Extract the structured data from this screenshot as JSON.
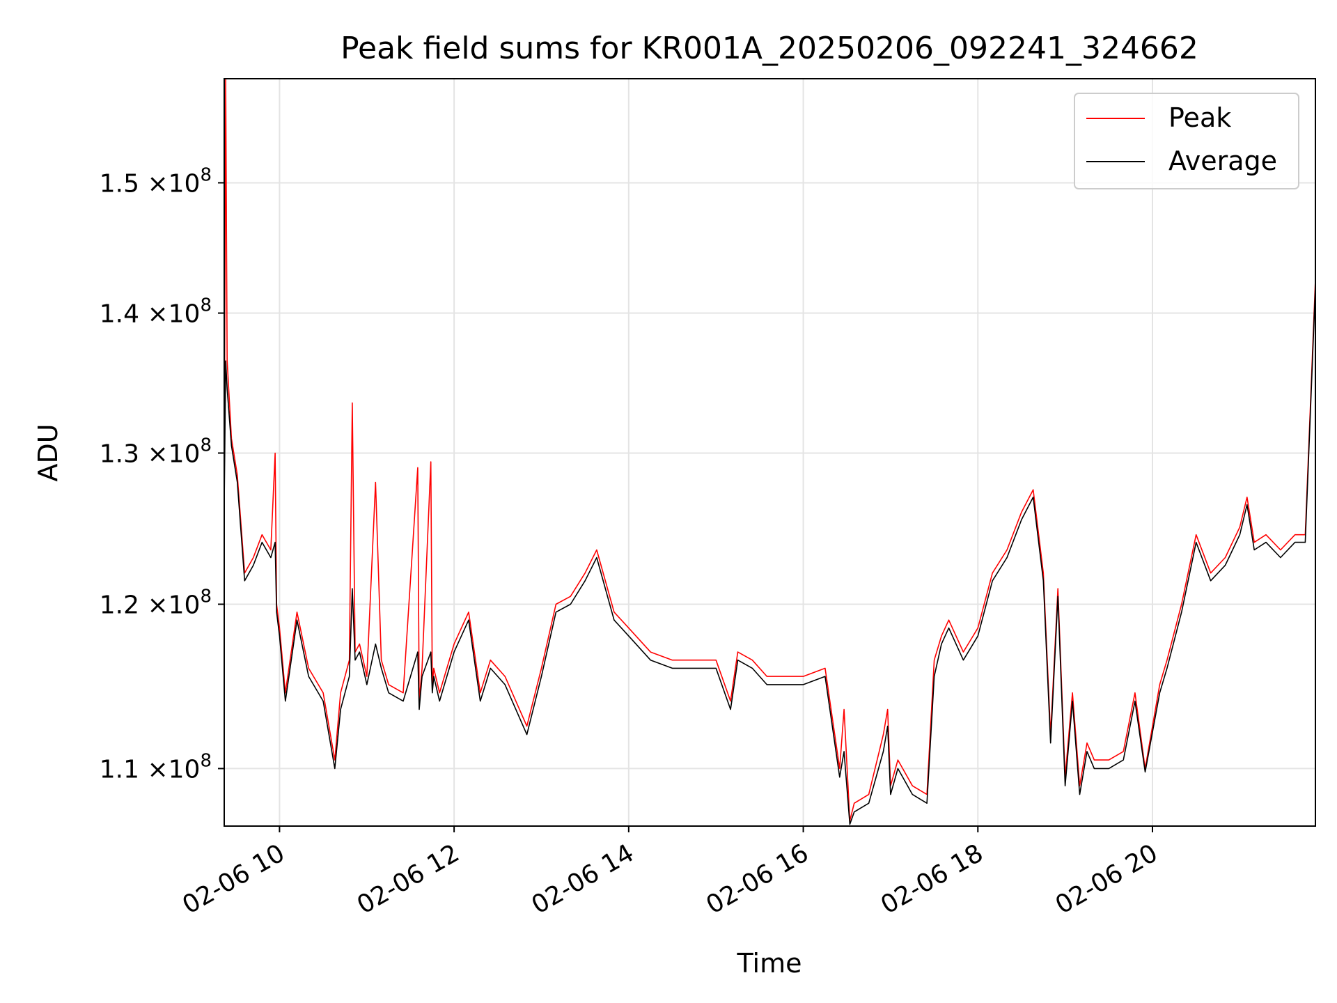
{
  "chart_data": {
    "type": "line",
    "title": "Peak field sums for KR001A_20250206_092241_324662",
    "xlabel": "Time",
    "ylabel": "ADU",
    "x_axis": "time",
    "xlim": [
      "2025-02-06 09:22",
      "2025-02-06 21:52"
    ],
    "xticks": [
      "2025-02-06 10:00",
      "2025-02-06 12:00",
      "2025-02-06 14:00",
      "2025-02-06 16:00",
      "2025-02-06 18:00",
      "2025-02-06 20:00"
    ],
    "xtick_labels": [
      "02-06 10",
      "02-06 12",
      "02-06 14",
      "02-06 16",
      "02-06 18",
      "02-06 20"
    ],
    "y_scale": "log",
    "ylim": [
      106700000,
      158500000
    ],
    "yticks": [
      110000000,
      120000000,
      130000000,
      140000000,
      150000000
    ],
    "ytick_labels": [
      {
        "mantissa": "1.1",
        "exponent": "8"
      },
      {
        "mantissa": "1.2",
        "exponent": "8"
      },
      {
        "mantissa": "1.3",
        "exponent": "8"
      },
      {
        "mantissa": "1.4",
        "exponent": "8"
      },
      {
        "mantissa": "1.5",
        "exponent": "8"
      }
    ],
    "tick_times_label": "×10",
    "grid": true,
    "legend": {
      "position": "top-right"
    },
    "series": [
      {
        "name": "Peak",
        "color": "#ff0000",
        "x": [
          "2025-02-06 09:22",
          "2025-02-06 09:23",
          "2025-02-06 09:24",
          "2025-02-06 09:27",
          "2025-02-06 09:31",
          "2025-02-06 09:36",
          "2025-02-06 09:42",
          "2025-02-06 09:48",
          "2025-02-06 09:54",
          "2025-02-06 09:57",
          "2025-02-06 09:58",
          "2025-02-06 10:00",
          "2025-02-06 10:04",
          "2025-02-06 10:12",
          "2025-02-06 10:20",
          "2025-02-06 10:30",
          "2025-02-06 10:38",
          "2025-02-06 10:42",
          "2025-02-06 10:48",
          "2025-02-06 10:50",
          "2025-02-06 10:52",
          "2025-02-06 10:55",
          "2025-02-06 11:00",
          "2025-02-06 11:06",
          "2025-02-06 11:10",
          "2025-02-06 11:15",
          "2025-02-06 11:25",
          "2025-02-06 11:35",
          "2025-02-06 11:36",
          "2025-02-06 11:38",
          "2025-02-06 11:44",
          "2025-02-06 11:45",
          "2025-02-06 11:46",
          "2025-02-06 11:50",
          "2025-02-06 12:00",
          "2025-02-06 12:10",
          "2025-02-06 12:18",
          "2025-02-06 12:25",
          "2025-02-06 12:35",
          "2025-02-06 12:50",
          "2025-02-06 13:00",
          "2025-02-06 13:10",
          "2025-02-06 13:20",
          "2025-02-06 13:30",
          "2025-02-06 13:38",
          "2025-02-06 13:50",
          "2025-02-06 14:00",
          "2025-02-06 14:15",
          "2025-02-06 14:30",
          "2025-02-06 14:45",
          "2025-02-06 15:00",
          "2025-02-06 15:10",
          "2025-02-06 15:15",
          "2025-02-06 15:25",
          "2025-02-06 15:35",
          "2025-02-06 15:45",
          "2025-02-06 16:00",
          "2025-02-06 16:15",
          "2025-02-06 16:25",
          "2025-02-06 16:28",
          "2025-02-06 16:32",
          "2025-02-06 16:35",
          "2025-02-06 16:45",
          "2025-02-06 16:55",
          "2025-02-06 16:58",
          "2025-02-06 17:00",
          "2025-02-06 17:05",
          "2025-02-06 17:15",
          "2025-02-06 17:25",
          "2025-02-06 17:30",
          "2025-02-06 17:35",
          "2025-02-06 17:40",
          "2025-02-06 17:50",
          "2025-02-06 18:00",
          "2025-02-06 18:10",
          "2025-02-06 18:20",
          "2025-02-06 18:30",
          "2025-02-06 18:38",
          "2025-02-06 18:45",
          "2025-02-06 18:50",
          "2025-02-06 18:55",
          "2025-02-06 19:00",
          "2025-02-06 19:05",
          "2025-02-06 19:10",
          "2025-02-06 19:15",
          "2025-02-06 19:20",
          "2025-02-06 19:30",
          "2025-02-06 19:40",
          "2025-02-06 19:48",
          "2025-02-06 19:55",
          "2025-02-06 20:05",
          "2025-02-06 20:10",
          "2025-02-06 20:20",
          "2025-02-06 20:30",
          "2025-02-06 20:40",
          "2025-02-06 20:50",
          "2025-02-06 21:00",
          "2025-02-06 21:05",
          "2025-02-06 21:10",
          "2025-02-06 21:18",
          "2025-02-06 21:28",
          "2025-02-06 21:38",
          "2025-02-06 21:45",
          "2025-02-06 21:52"
        ],
        "values": [
          127000000,
          158500000,
          136500000,
          131000000,
          128500000,
          122000000,
          123000000,
          124500000,
          123500000,
          130000000,
          120000000,
          118500000,
          114500000,
          119500000,
          116000000,
          114500000,
          110500000,
          114500000,
          116500000,
          133500000,
          117000000,
          117500000,
          115500000,
          128000000,
          116500000,
          115000000,
          114500000,
          129000000,
          114000000,
          116000000,
          129400000,
          115000000,
          116000000,
          114500000,
          117500000,
          119500000,
          114500000,
          116500000,
          115500000,
          112500000,
          116000000,
          120000000,
          120500000,
          122000000,
          123500000,
          119500000,
          118500000,
          117000000,
          116500000,
          116500000,
          116500000,
          114000000,
          117000000,
          116500000,
          115500000,
          115500000,
          115500000,
          116000000,
          110000000,
          113500000,
          107000000,
          108000000,
          108500000,
          112000000,
          113500000,
          109000000,
          110500000,
          109000000,
          108500000,
          116500000,
          118000000,
          119000000,
          117000000,
          118500000,
          122000000,
          123500000,
          126000000,
          127500000,
          122000000,
          112000000,
          121000000,
          109500000,
          114500000,
          109000000,
          111500000,
          110500000,
          110500000,
          111000000,
          114500000,
          110000000,
          115000000,
          116500000,
          120000000,
          124500000,
          122000000,
          123000000,
          125000000,
          127000000,
          124000000,
          124500000,
          123500000,
          124500000,
          124500000,
          142500000
        ]
      },
      {
        "name": "Average",
        "color": "#000000",
        "x": [
          "2025-02-06 09:22",
          "2025-02-06 09:23",
          "2025-02-06 09:24",
          "2025-02-06 09:27",
          "2025-02-06 09:31",
          "2025-02-06 09:36",
          "2025-02-06 09:42",
          "2025-02-06 09:48",
          "2025-02-06 09:54",
          "2025-02-06 09:57",
          "2025-02-06 09:58",
          "2025-02-06 10:00",
          "2025-02-06 10:04",
          "2025-02-06 10:12",
          "2025-02-06 10:20",
          "2025-02-06 10:30",
          "2025-02-06 10:38",
          "2025-02-06 10:42",
          "2025-02-06 10:48",
          "2025-02-06 10:50",
          "2025-02-06 10:52",
          "2025-02-06 10:55",
          "2025-02-06 11:00",
          "2025-02-06 11:06",
          "2025-02-06 11:10",
          "2025-02-06 11:15",
          "2025-02-06 11:25",
          "2025-02-06 11:35",
          "2025-02-06 11:36",
          "2025-02-06 11:38",
          "2025-02-06 11:44",
          "2025-02-06 11:45",
          "2025-02-06 11:46",
          "2025-02-06 11:50",
          "2025-02-06 12:00",
          "2025-02-06 12:10",
          "2025-02-06 12:18",
          "2025-02-06 12:25",
          "2025-02-06 12:35",
          "2025-02-06 12:50",
          "2025-02-06 13:00",
          "2025-02-06 13:10",
          "2025-02-06 13:20",
          "2025-02-06 13:30",
          "2025-02-06 13:38",
          "2025-02-06 13:50",
          "2025-02-06 14:00",
          "2025-02-06 14:15",
          "2025-02-06 14:30",
          "2025-02-06 14:45",
          "2025-02-06 15:00",
          "2025-02-06 15:10",
          "2025-02-06 15:15",
          "2025-02-06 15:25",
          "2025-02-06 15:35",
          "2025-02-06 15:45",
          "2025-02-06 16:00",
          "2025-02-06 16:15",
          "2025-02-06 16:25",
          "2025-02-06 16:28",
          "2025-02-06 16:32",
          "2025-02-06 16:35",
          "2025-02-06 16:45",
          "2025-02-06 16:55",
          "2025-02-06 16:58",
          "2025-02-06 17:00",
          "2025-02-06 17:05",
          "2025-02-06 17:15",
          "2025-02-06 17:25",
          "2025-02-06 17:30",
          "2025-02-06 17:35",
          "2025-02-06 17:40",
          "2025-02-06 17:50",
          "2025-02-06 18:00",
          "2025-02-06 18:10",
          "2025-02-06 18:20",
          "2025-02-06 18:30",
          "2025-02-06 18:38",
          "2025-02-06 18:45",
          "2025-02-06 18:50",
          "2025-02-06 18:55",
          "2025-02-06 19:00",
          "2025-02-06 19:05",
          "2025-02-06 19:10",
          "2025-02-06 19:15",
          "2025-02-06 19:20",
          "2025-02-06 19:30",
          "2025-02-06 19:40",
          "2025-02-06 19:48",
          "2025-02-06 19:55",
          "2025-02-06 20:05",
          "2025-02-06 20:10",
          "2025-02-06 20:20",
          "2025-02-06 20:30",
          "2025-02-06 20:40",
          "2025-02-06 20:50",
          "2025-02-06 21:00",
          "2025-02-06 21:05",
          "2025-02-06 21:10",
          "2025-02-06 21:18",
          "2025-02-06 21:28",
          "2025-02-06 21:38",
          "2025-02-06 21:45",
          "2025-02-06 21:52"
        ],
        "values": [
          126500000,
          136500000,
          134500000,
          130500000,
          128000000,
          121500000,
          122500000,
          124000000,
          123000000,
          124000000,
          119500000,
          118000000,
          114000000,
          119000000,
          115500000,
          114000000,
          110000000,
          113500000,
          115500000,
          121000000,
          116500000,
          117000000,
          115000000,
          117500000,
          116000000,
          114500000,
          114000000,
          117000000,
          113500000,
          115500000,
          117000000,
          114500000,
          115500000,
          114000000,
          117000000,
          119000000,
          114000000,
          116000000,
          115000000,
          112000000,
          115500000,
          119500000,
          120000000,
          121500000,
          123000000,
          119000000,
          118000000,
          116500000,
          116000000,
          116000000,
          116000000,
          113500000,
          116500000,
          116000000,
          115000000,
          115000000,
          115000000,
          115500000,
          109500000,
          111000000,
          106800000,
          107500000,
          108000000,
          111000000,
          112500000,
          108500000,
          110000000,
          108500000,
          108000000,
          115500000,
          117500000,
          118500000,
          116500000,
          118000000,
          121500000,
          123000000,
          125500000,
          127000000,
          121500000,
          111500000,
          120500000,
          109000000,
          114000000,
          108500000,
          111000000,
          110000000,
          110000000,
          110500000,
          114000000,
          109800000,
          114500000,
          116000000,
          119500000,
          124000000,
          121500000,
          122500000,
          124500000,
          126500000,
          123500000,
          124000000,
          123000000,
          124000000,
          124000000,
          142000000
        ]
      }
    ]
  }
}
